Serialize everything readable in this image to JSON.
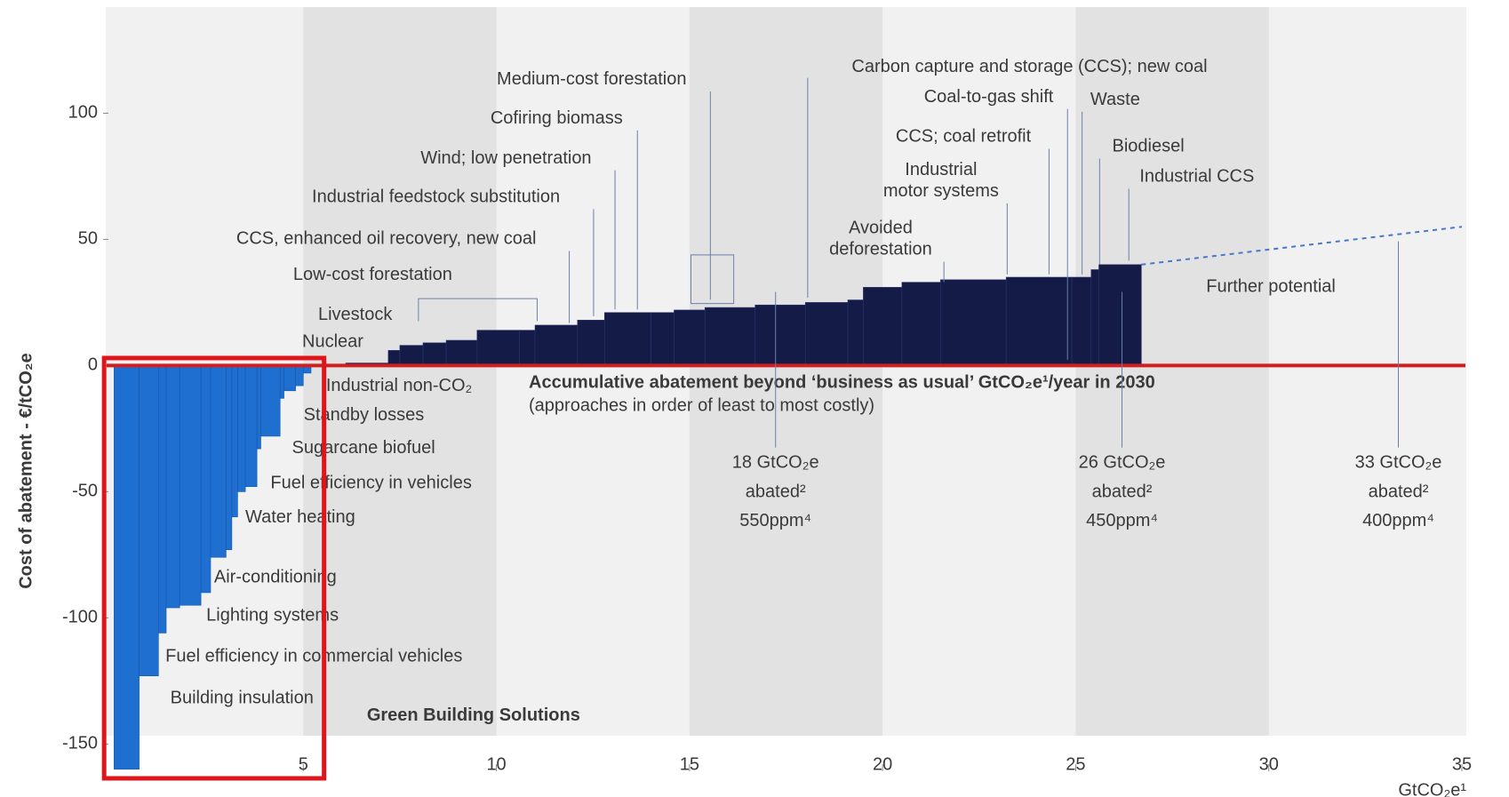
{
  "chart_data": {
    "type": "mac",
    "y_axis_label": "Cost of abatement - €/tCO₂e",
    "x_axis_label": "GtCO₂e¹",
    "xlim": [
      0,
      35
    ],
    "ylim": [
      -165,
      135
    ],
    "xticks": [
      5,
      10,
      15,
      20,
      25,
      30,
      35
    ],
    "yticks": [
      100,
      50,
      0,
      -50,
      -100,
      -150
    ],
    "bar_x_start": [
      0.1,
      0.75,
      1.25,
      1.45,
      1.8,
      2.35,
      2.6,
      3.0,
      3.15,
      3.3,
      3.5,
      3.8,
      3.9,
      4.4,
      4.5,
      4.8,
      5.0,
      6.1,
      7.2,
      7.5,
      8.1,
      8.7,
      9.5,
      10.6,
      11.0,
      12.1,
      12.8,
      14.0,
      14.6,
      15.4,
      16.7,
      18.0,
      19.1,
      19.5,
      20.5,
      21.5,
      23.2,
      24.9,
      25.4,
      25.6
    ],
    "bar_x_end": [
      0.75,
      1.25,
      1.45,
      1.8,
      2.35,
      2.6,
      3.0,
      3.15,
      3.3,
      3.5,
      3.8,
      3.9,
      4.4,
      4.5,
      4.8,
      5.0,
      5.2,
      7.2,
      7.5,
      8.1,
      8.7,
      9.5,
      10.6,
      11.0,
      12.1,
      12.8,
      14.0,
      14.6,
      15.4,
      16.7,
      18.0,
      19.1,
      19.5,
      20.5,
      21.5,
      23.2,
      24.9,
      25.4,
      25.6,
      26.7
    ],
    "values": [
      -160,
      -123,
      -106,
      -96,
      -95,
      -90,
      -76,
      -73,
      -60,
      -50,
      -48,
      -33,
      -28,
      -13,
      -10,
      -8,
      -3,
      1,
      6,
      8,
      9,
      10,
      14,
      14,
      16,
      18,
      21,
      21,
      22,
      23,
      24,
      25,
      26,
      31,
      33,
      34,
      35,
      35,
      38,
      40
    ],
    "negative_color": "#1f6fd1",
    "positive_color": "#151b47",
    "further_potential": {
      "x": [
        26.7,
        35
      ],
      "values": [
        40,
        55
      ],
      "color": "#4a78c8"
    },
    "baseline_color": "#d11f1f",
    "baseline_caption": "Accumulative abatement beyond ‘business as usual’ GtCO₂e¹/year in 2030",
    "baseline_subcaption": "(approaches in order of least to most costly)",
    "annotations": [
      [
        "Medium-cost forestation"
      ],
      [
        "Cofiring biomass"
      ],
      [
        "Wind; low penetration"
      ],
      [
        "Industrial feedstock substitution"
      ],
      [
        "CCS, enhanced oil recovery, new coal"
      ],
      [
        "Low-cost forestation"
      ],
      [
        "Livestock"
      ],
      [
        "Nuclear"
      ],
      [
        "Carbon capture and storage (CCS); new coal"
      ],
      [
        "Coal-to-gas shift"
      ],
      [
        "Waste"
      ],
      [
        "CCS; coal retrofit"
      ],
      [
        "Industrial",
        "motor systems"
      ],
      [
        "Avoided",
        "deforestation"
      ],
      [
        "Biodiesel"
      ],
      [
        "Industrial CCS"
      ],
      [
        "Further potential"
      ],
      [
        "Industrial non-CO₂"
      ],
      [
        "Standby losses"
      ],
      [
        "Sugarcane biofuel"
      ],
      [
        "Fuel efficiency in vehicles"
      ],
      [
        "Water heating"
      ],
      [
        "Air-conditioning"
      ],
      [
        "Lighting systems"
      ],
      [
        "Fuel efficiency in commercial vehicles"
      ],
      [
        "Building insulation"
      ]
    ],
    "milestones": [
      [
        "18 GtCO₂e",
        "abated²",
        "550ppm⁴"
      ],
      [
        "26 GtCO₂e",
        "abated²",
        "450ppm⁴"
      ],
      [
        "33 GtCO₂e",
        "abated²",
        "400ppm⁴"
      ]
    ],
    "highlight_label": "Green Building Solutions",
    "highlight_color": "#e0141b"
  }
}
